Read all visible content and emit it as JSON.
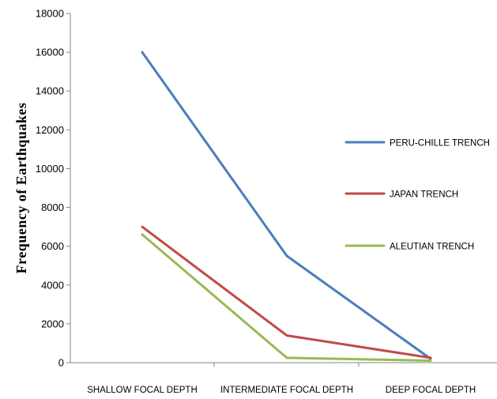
{
  "chart_data": {
    "type": "line",
    "title": "",
    "xlabel": "",
    "ylabel": "Frequency of Earthquakes",
    "ylim": [
      0,
      18000
    ],
    "yticks": [
      0,
      2000,
      4000,
      6000,
      8000,
      10000,
      12000,
      14000,
      16000,
      18000
    ],
    "categories": [
      "SHALLOW FOCAL DEPTH",
      "INTERMEDIATE FOCAL DEPTH",
      "DEEP FOCAL DEPTH"
    ],
    "grid": false,
    "legend_position": "right",
    "series": [
      {
        "name": "PERU-CHILLE TRENCH",
        "color": "#4a7ebb",
        "values": [
          16000,
          5500,
          200
        ]
      },
      {
        "name": "JAPAN TRENCH",
        "color": "#be4b48",
        "values": [
          7000,
          1400,
          250
        ]
      },
      {
        "name": "ALEUTIAN TRENCH",
        "color": "#98b954",
        "values": [
          6600,
          250,
          100
        ]
      }
    ]
  }
}
